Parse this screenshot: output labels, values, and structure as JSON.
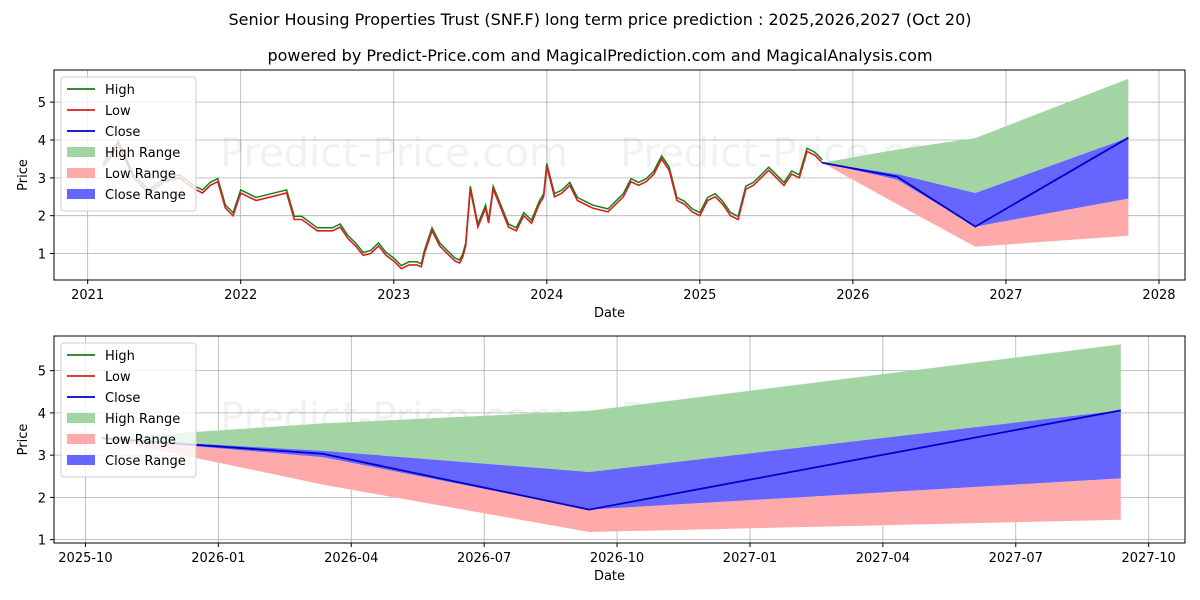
{
  "title": "Senior Housing Properties Trust (SNF.F) long term price prediction : 2025,2026,2027 (Oct 20)",
  "subtitle": "powered by Predict-Price.com and MagicalPrediction.com and MagicalAnalysis.com",
  "watermark": "Predict-Price.com",
  "colors": {
    "high": "#1a7f1a",
    "low": "#d62020",
    "close": "#0000cc",
    "high_range": "#a3d4a3",
    "low_range": "#ffaaaa",
    "close_range": "#6666ff"
  },
  "chart_data": [
    {
      "type": "line",
      "xlabel": "Date",
      "ylabel": "Price",
      "xlim": [
        2020.78,
        2028.17
      ],
      "ylim": [
        0.3,
        5.85
      ],
      "x_ticks": [
        2021,
        2022,
        2023,
        2024,
        2025,
        2026,
        2027,
        2028
      ],
      "x_tick_labels": [
        "2021",
        "2022",
        "2023",
        "2024",
        "2025",
        "2026",
        "2027",
        "2028"
      ],
      "y_ticks": [
        1,
        2,
        3,
        4,
        5
      ],
      "legend": [
        "High",
        "Low",
        "Close",
        "High Range",
        "Low Range",
        "Close Range"
      ],
      "legend_position": "upper-left",
      "history": {
        "x": [
          2021.1,
          2021.16,
          2021.2,
          2021.3,
          2021.4,
          2021.5,
          2021.6,
          2021.7,
          2021.75,
          2021.8,
          2021.85,
          2021.9,
          2021.95,
          2022.0,
          2022.05,
          2022.1,
          2022.2,
          2022.3,
          2022.35,
          2022.4,
          2022.5,
          2022.6,
          2022.65,
          2022.7,
          2022.75,
          2022.8,
          2022.85,
          2022.9,
          2022.95,
          2023.0,
          2023.05,
          2023.1,
          2023.15,
          2023.18,
          2023.2,
          2023.25,
          2023.3,
          2023.35,
          2023.4,
          2023.43,
          2023.45,
          2023.47,
          2023.5,
          2023.55,
          2023.6,
          2023.62,
          2023.65,
          2023.7,
          2023.75,
          2023.8,
          2023.85,
          2023.9,
          2023.95,
          2023.98,
          2024.0,
          2024.05,
          2024.1,
          2024.15,
          2024.2,
          2024.3,
          2024.4,
          2024.5,
          2024.55,
          2024.6,
          2024.65,
          2024.7,
          2024.75,
          2024.8,
          2024.85,
          2024.9,
          2024.95,
          2025.0,
          2025.05,
          2025.1,
          2025.15,
          2025.2,
          2025.25,
          2025.3,
          2025.35,
          2025.4,
          2025.45,
          2025.5,
          2025.55,
          2025.6,
          2025.65,
          2025.7,
          2025.75,
          2025.8
        ],
        "close": [
          3.3,
          3.6,
          3.9,
          3.0,
          2.6,
          2.9,
          3.0,
          2.7,
          2.6,
          2.8,
          2.9,
          2.2,
          2.0,
          2.6,
          2.5,
          2.4,
          2.5,
          2.6,
          1.9,
          1.9,
          1.6,
          1.6,
          1.7,
          1.4,
          1.2,
          0.95,
          1.0,
          1.2,
          0.95,
          0.8,
          0.6,
          0.7,
          0.7,
          0.65,
          1.0,
          1.6,
          1.2,
          1.0,
          0.8,
          0.75,
          0.9,
          1.2,
          2.7,
          1.7,
          2.2,
          1.8,
          2.7,
          2.2,
          1.7,
          1.6,
          2.0,
          1.8,
          2.3,
          2.5,
          3.3,
          2.5,
          2.6,
          2.8,
          2.4,
          2.2,
          2.1,
          2.5,
          2.9,
          2.8,
          2.9,
          3.1,
          3.5,
          3.2,
          2.4,
          2.3,
          2.1,
          2.0,
          2.4,
          2.5,
          2.3,
          2.0,
          1.9,
          2.7,
          2.8,
          3.0,
          3.2,
          3.0,
          2.8,
          3.1,
          3.0,
          3.7,
          3.6,
          3.4
        ]
      },
      "forecast": {
        "x": [
          2025.8,
          2026.29,
          2026.8,
          2027.8
        ],
        "close": [
          3.4,
          3.03,
          1.71,
          4.06
        ],
        "close_range_high": [
          3.4,
          3.1,
          2.6,
          4.06
        ],
        "close_range_low": [
          3.4,
          2.95,
          1.71,
          2.45
        ],
        "high_range_high": [
          3.4,
          3.75,
          4.05,
          5.62
        ],
        "low_range_low": [
          3.4,
          2.3,
          1.18,
          1.47
        ]
      }
    },
    {
      "type": "line",
      "xlabel": "Date",
      "ylabel": "Price",
      "xlim": [
        -0.08,
        25.45
      ],
      "ylim": [
        0.92,
        5.82
      ],
      "x_ticks": [
        0.63,
        3.63,
        6.63,
        9.63,
        12.63,
        15.63,
        18.63,
        21.63,
        24.63
      ],
      "x_tick_labels": [
        "2025-10",
        "2026-01",
        "2026-04",
        "2026-07",
        "2026-10",
        "2027-01",
        "2027-04",
        "2027-07",
        "2027-10"
      ],
      "y_ticks": [
        1,
        2,
        3,
        4,
        5
      ],
      "legend": [
        "High",
        "Low",
        "Close",
        "High Range",
        "Low Range",
        "Close Range"
      ],
      "legend_position": "upper-left",
      "forecast": {
        "x": [
          1.0,
          6.0,
          12.0,
          24.0
        ],
        "close": [
          3.4,
          3.03,
          1.71,
          4.06
        ],
        "close_range_high": [
          3.4,
          3.1,
          2.6,
          4.06
        ],
        "close_range_low": [
          3.4,
          2.95,
          1.71,
          2.45
        ],
        "high_range_high": [
          3.4,
          3.75,
          4.05,
          5.62
        ],
        "low_range_low": [
          3.4,
          2.3,
          1.18,
          1.47
        ]
      }
    }
  ]
}
